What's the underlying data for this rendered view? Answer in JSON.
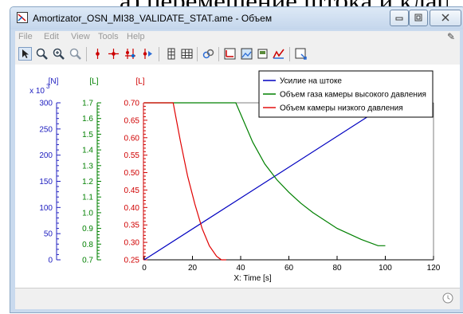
{
  "background": {
    "heading_fragment": "а) перемещение штока и клапан"
  },
  "window": {
    "title": "Amortizator_OSN_MI38_VALIDATE_STAT.ame - Объем",
    "controls": {
      "minimize": "minimize-icon",
      "maximize": "maximize-icon",
      "close": "close-icon"
    }
  },
  "menu": {
    "items": [
      "File",
      "Edit",
      "View",
      "Tools",
      "Help"
    ]
  },
  "toolbar": {
    "icons": [
      "select-arrow-icon",
      "zoom-in-icon",
      "zoom-area-icon",
      "zoom-out-icon",
      "marker-icon",
      "cross-marker-icon",
      "multi-marker-icon",
      "marker-play-icon",
      "table-icon",
      "grid-icon",
      "link-icon",
      "plot-icon",
      "image-icon",
      "export-icon",
      "chart-icon",
      "settings-icon"
    ]
  },
  "chart_data": {
    "type": "line",
    "xlabel": "X: Time [s]",
    "xlim": [
      0,
      120
    ],
    "x_ticks": [
      0,
      20,
      40,
      60,
      80,
      100,
      120
    ],
    "y_axes": [
      {
        "unit": "[N]",
        "multiplier": "x 10",
        "exponent": "3",
        "range": [
          0,
          300
        ],
        "ticks": [
          0,
          50,
          100,
          150,
          200,
          250,
          300
        ],
        "color": "#2020c0"
      },
      {
        "unit": "[L]",
        "range": [
          0.7,
          1.7
        ],
        "ticks": [
          0.7,
          0.8,
          0.9,
          1.0,
          1.1,
          1.2,
          1.3,
          1.4,
          1.5,
          1.6,
          1.7
        ],
        "color": "#008000"
      },
      {
        "unit": "[L]",
        "range": [
          0.25,
          0.7
        ],
        "ticks": [
          0.25,
          0.3,
          0.35,
          0.4,
          0.45,
          0.5,
          0.55,
          0.6,
          0.65,
          0.7
        ],
        "color": "#d00000"
      }
    ],
    "series": [
      {
        "name": "Усилие на штоке",
        "color": "#0000c0",
        "axis": 0,
        "points": [
          [
            0,
            0
          ],
          [
            100,
            295
          ]
        ]
      },
      {
        "name": "Объем газа камеры высокого давления",
        "color": "#008000",
        "axis": 1,
        "points": [
          [
            0,
            1.7
          ],
          [
            38,
            1.7
          ],
          [
            45,
            1.45
          ],
          [
            50,
            1.31
          ],
          [
            55,
            1.21
          ],
          [
            60,
            1.13
          ],
          [
            65,
            1.06
          ],
          [
            70,
            1.0
          ],
          [
            80,
            0.9
          ],
          [
            90,
            0.83
          ],
          [
            97,
            0.79
          ],
          [
            100,
            0.79
          ]
        ]
      },
      {
        "name": "Объем камеры низкого давления",
        "color": "#e00000",
        "axis": 2,
        "points": [
          [
            0,
            0.7
          ],
          [
            12,
            0.7
          ],
          [
            15,
            0.59
          ],
          [
            18,
            0.49
          ],
          [
            21,
            0.41
          ],
          [
            24,
            0.34
          ],
          [
            27,
            0.29
          ],
          [
            30,
            0.26
          ],
          [
            32,
            0.25
          ],
          [
            34,
            0.25
          ]
        ]
      }
    ],
    "legend_position": "top-right",
    "grid": false
  }
}
